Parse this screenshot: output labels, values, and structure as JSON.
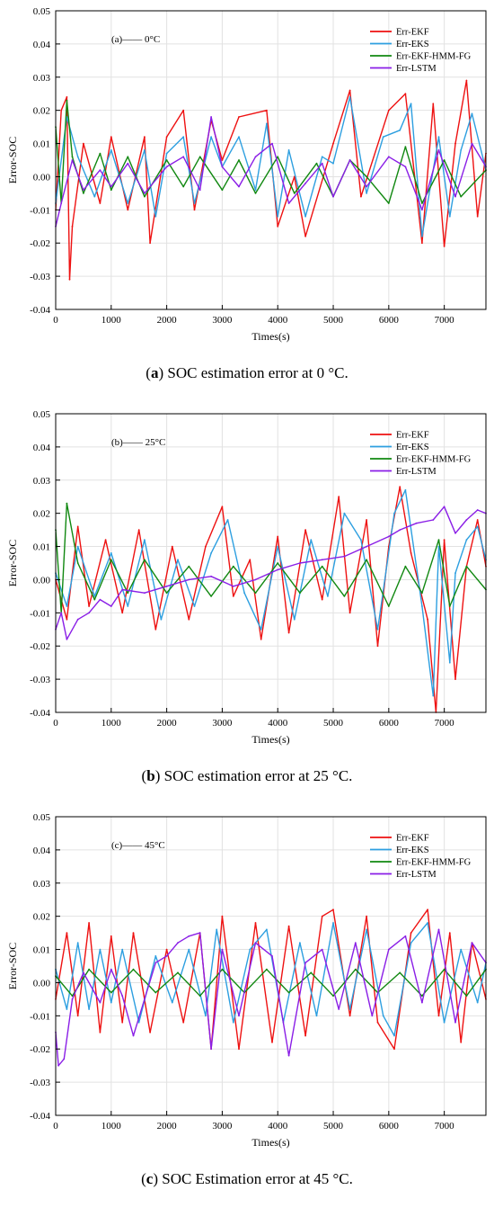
{
  "chart_data": [
    {
      "type": "line",
      "annotation": "(a)—— 0°C",
      "caption_letter": "a",
      "caption_text": "SOC estimation error at 0 °C.",
      "xlabel": "Times(s)",
      "ylabel": "Error-SOC",
      "xlim": [
        0,
        7750
      ],
      "ylim": [
        -0.04,
        0.05
      ],
      "x_ticks": [
        "0",
        "1000",
        "2000",
        "3000",
        "4000",
        "5000",
        "6000",
        "7000"
      ],
      "y_ticks": [
        "-0.04",
        "-0.03",
        "-0.02",
        "-0.01",
        "0.00",
        "0.01",
        "0.02",
        "0.03",
        "0.04",
        "0.05"
      ],
      "grid": true,
      "legend_position": "top-right",
      "colors": {
        "Err-EKF": "#ee1111",
        "Err-EKS": "#2d9fe0",
        "Err-EKF-HMM-FG": "#118811",
        "Err-LSTM": "#8a1ee6"
      },
      "series": [
        {
          "name": "Err-EKF",
          "x": [
            0,
            100,
            200,
            250,
            300,
            500,
            800,
            1000,
            1300,
            1600,
            1700,
            2000,
            2300,
            2500,
            2800,
            3000,
            3300,
            3800,
            4000,
            4300,
            4500,
            5000,
            5300,
            5500,
            6000,
            6300,
            6600,
            6800,
            7000,
            7200,
            7400,
            7600,
            7750
          ],
          "y": [
            -0.01,
            0.02,
            0.024,
            -0.031,
            -0.015,
            0.01,
            -0.008,
            0.012,
            -0.01,
            0.012,
            -0.02,
            0.012,
            0.02,
            -0.01,
            0.017,
            0.005,
            0.018,
            0.02,
            -0.015,
            0.0,
            -0.018,
            0.01,
            0.026,
            -0.006,
            0.02,
            0.025,
            -0.02,
            0.022,
            -0.021,
            0.01,
            0.029,
            -0.012,
            0.007
          ]
        },
        {
          "name": "Err-EKS",
          "x": [
            0,
            200,
            400,
            700,
            1000,
            1300,
            1600,
            1800,
            2000,
            2300,
            2500,
            2800,
            3000,
            3300,
            3600,
            3800,
            4000,
            4200,
            4500,
            4800,
            5000,
            5300,
            5600,
            5900,
            6200,
            6400,
            6600,
            6900,
            7100,
            7300,
            7500,
            7750
          ],
          "y": [
            -0.008,
            0.018,
            0.006,
            -0.006,
            0.008,
            -0.008,
            0.008,
            -0.012,
            0.007,
            0.012,
            -0.008,
            0.012,
            0.003,
            0.012,
            -0.004,
            0.016,
            -0.012,
            0.008,
            -0.012,
            0.006,
            0.004,
            0.024,
            -0.005,
            0.012,
            0.014,
            0.022,
            -0.018,
            0.012,
            -0.012,
            0.008,
            0.019,
            0.002
          ]
        },
        {
          "name": "Err-EKF-HMM-FG",
          "x": [
            0,
            100,
            200,
            300,
            500,
            800,
            1000,
            1300,
            1600,
            2000,
            2300,
            2600,
            3000,
            3300,
            3600,
            4000,
            4300,
            4700,
            5000,
            5300,
            5600,
            6000,
            6300,
            6600,
            7000,
            7300,
            7750
          ],
          "y": [
            0.015,
            -0.008,
            0.023,
            0.006,
            -0.005,
            0.007,
            -0.004,
            0.006,
            -0.006,
            0.005,
            -0.003,
            0.006,
            -0.004,
            0.005,
            -0.005,
            0.006,
            -0.005,
            0.004,
            -0.006,
            0.005,
            0.0,
            -0.008,
            0.009,
            -0.008,
            0.005,
            -0.006,
            0.002
          ]
        },
        {
          "name": "Err-LSTM",
          "x": [
            0,
            100,
            300,
            500,
            800,
            1000,
            1300,
            1600,
            2000,
            2300,
            2600,
            2800,
            3000,
            3300,
            3600,
            3900,
            4200,
            4500,
            4800,
            5000,
            5300,
            5600,
            6000,
            6300,
            6600,
            6900,
            7200,
            7500,
            7750
          ],
          "y": [
            -0.015,
            -0.008,
            0.005,
            -0.004,
            0.002,
            -0.003,
            0.004,
            -0.005,
            0.003,
            0.006,
            -0.004,
            0.018,
            0.003,
            -0.003,
            0.006,
            0.01,
            -0.008,
            -0.002,
            0.004,
            -0.006,
            0.005,
            -0.003,
            0.006,
            0.003,
            -0.01,
            0.008,
            -0.006,
            0.01,
            0.003
          ]
        }
      ]
    },
    {
      "type": "line",
      "annotation": "(b)—— 25°C",
      "caption_letter": "b",
      "caption_text": "SOC estimation error at 25 °C.",
      "xlabel": "Times(s)",
      "ylabel": "Error-SOC",
      "xlim": [
        0,
        7750
      ],
      "ylim": [
        -0.04,
        0.05
      ],
      "x_ticks": [
        "0",
        "1000",
        "2000",
        "3000",
        "4000",
        "5000",
        "6000",
        "7000"
      ],
      "y_ticks": [
        "-0.04",
        "-0.03",
        "-0.02",
        "-0.01",
        "0.00",
        "0.01",
        "0.02",
        "0.03",
        "0.04",
        "0.05"
      ],
      "grid": true,
      "legend_position": "top-right",
      "colors": {
        "Err-EKF": "#ee1111",
        "Err-EKS": "#2d9fe0",
        "Err-EKF-HMM-FG": "#118811",
        "Err-LSTM": "#8a1ee6"
      },
      "series": [
        {
          "name": "Err-EKF",
          "x": [
            0,
            200,
            400,
            600,
            900,
            1200,
            1500,
            1800,
            2100,
            2400,
            2700,
            3000,
            3200,
            3500,
            3700,
            4000,
            4200,
            4500,
            4800,
            5100,
            5300,
            5600,
            5800,
            6000,
            6200,
            6400,
            6700,
            6850,
            7000,
            7200,
            7400,
            7600,
            7750
          ],
          "y": [
            0.0,
            -0.012,
            0.016,
            -0.008,
            0.012,
            -0.01,
            0.015,
            -0.015,
            0.01,
            -0.012,
            0.01,
            0.022,
            -0.005,
            0.006,
            -0.018,
            0.013,
            -0.016,
            0.015,
            -0.006,
            0.025,
            -0.01,
            0.018,
            -0.02,
            0.01,
            0.028,
            0.008,
            -0.012,
            -0.04,
            0.012,
            -0.03,
            0.004,
            0.018,
            0.004
          ]
        },
        {
          "name": "Err-EKS",
          "x": [
            0,
            200,
            400,
            700,
            1000,
            1300,
            1600,
            1900,
            2200,
            2500,
            2800,
            3100,
            3400,
            3700,
            4000,
            4300,
            4600,
            4900,
            5200,
            5500,
            5800,
            6100,
            6300,
            6600,
            6800,
            6900,
            7100,
            7200,
            7400,
            7600,
            7750
          ],
          "y": [
            0.002,
            -0.008,
            0.01,
            -0.005,
            0.008,
            -0.008,
            0.012,
            -0.012,
            0.006,
            -0.008,
            0.008,
            0.018,
            -0.004,
            -0.015,
            0.01,
            -0.012,
            0.012,
            -0.005,
            0.02,
            0.012,
            -0.015,
            0.02,
            0.027,
            -0.008,
            -0.035,
            0.01,
            -0.025,
            0.002,
            0.012,
            0.016,
            0.006
          ]
        },
        {
          "name": "Err-EKF-HMM-FG",
          "x": [
            0,
            100,
            200,
            400,
            700,
            1000,
            1300,
            1600,
            2000,
            2400,
            2800,
            3200,
            3600,
            4000,
            4400,
            4800,
            5200,
            5600,
            6000,
            6300,
            6600,
            6900,
            7100,
            7400,
            7750
          ],
          "y": [
            0.015,
            -0.01,
            0.023,
            0.005,
            -0.006,
            0.006,
            -0.004,
            0.006,
            -0.004,
            0.004,
            -0.005,
            0.004,
            -0.004,
            0.005,
            -0.004,
            0.004,
            -0.005,
            0.006,
            -0.008,
            0.004,
            -0.004,
            0.012,
            -0.008,
            0.004,
            -0.003
          ]
        },
        {
          "name": "Err-LSTM",
          "x": [
            0,
            100,
            200,
            400,
            600,
            800,
            1000,
            1200,
            1600,
            2000,
            2400,
            2800,
            3200,
            3600,
            4000,
            4400,
            4800,
            5200,
            5600,
            6000,
            6200,
            6500,
            6800,
            7000,
            7200,
            7400,
            7600,
            7750
          ],
          "y": [
            -0.015,
            -0.01,
            -0.018,
            -0.012,
            -0.01,
            -0.006,
            -0.008,
            -0.003,
            -0.004,
            -0.002,
            0.0,
            0.001,
            -0.002,
            0.0,
            0.003,
            0.005,
            0.006,
            0.007,
            0.01,
            0.013,
            0.015,
            0.017,
            0.018,
            0.022,
            0.014,
            0.018,
            0.021,
            0.02
          ]
        }
      ]
    },
    {
      "type": "line",
      "annotation": "(c)—— 45°C",
      "caption_letter": "c",
      "caption_text": "SOC Estimation error at 45 °C.",
      "xlabel": "Times(s)",
      "ylabel": "Error-SOC",
      "xlim": [
        0,
        7750
      ],
      "ylim": [
        -0.04,
        0.05
      ],
      "x_ticks": [
        "0",
        "1000",
        "2000",
        "3000",
        "4000",
        "5000",
        "6000",
        "7000"
      ],
      "y_ticks": [
        "-0.04",
        "-0.03",
        "-0.02",
        "-0.01",
        "0.00",
        "0.01",
        "0.02",
        "0.03",
        "0.04",
        "0.05"
      ],
      "grid": true,
      "legend_position": "top-right",
      "colors": {
        "Err-EKF": "#ee1111",
        "Err-EKS": "#2d9fe0",
        "Err-EKF-HMM-FG": "#118811",
        "Err-LSTM": "#8a1ee6"
      },
      "series": [
        {
          "name": "Err-EKF",
          "x": [
            0,
            200,
            400,
            600,
            800,
            1000,
            1200,
            1400,
            1700,
            2000,
            2300,
            2600,
            2800,
            3000,
            3300,
            3600,
            3900,
            4200,
            4500,
            4800,
            5000,
            5300,
            5600,
            5800,
            6100,
            6400,
            6700,
            6900,
            7100,
            7300,
            7500,
            7750
          ],
          "y": [
            -0.005,
            0.015,
            -0.01,
            0.018,
            -0.015,
            0.014,
            -0.012,
            0.015,
            -0.015,
            0.01,
            -0.012,
            0.015,
            -0.02,
            0.02,
            -0.02,
            0.018,
            -0.018,
            0.017,
            -0.016,
            0.02,
            0.022,
            -0.01,
            0.02,
            -0.012,
            -0.02,
            0.015,
            0.022,
            -0.01,
            0.015,
            -0.018,
            0.012,
            -0.005
          ]
        },
        {
          "name": "Err-EKS",
          "x": [
            0,
            200,
            400,
            600,
            800,
            1000,
            1200,
            1500,
            1800,
            2100,
            2400,
            2700,
            2900,
            3200,
            3500,
            3800,
            4100,
            4400,
            4700,
            5000,
            5300,
            5600,
            5900,
            6100,
            6400,
            6700,
            7000,
            7300,
            7600,
            7750
          ],
          "y": [
            0.004,
            -0.008,
            0.012,
            -0.008,
            0.01,
            -0.006,
            0.01,
            -0.012,
            0.008,
            -0.006,
            0.01,
            -0.01,
            0.016,
            -0.012,
            0.01,
            0.016,
            -0.012,
            0.012,
            -0.01,
            0.018,
            -0.008,
            0.016,
            -0.01,
            -0.016,
            0.012,
            0.018,
            -0.012,
            0.01,
            -0.006,
            0.006
          ]
        },
        {
          "name": "Err-EKF-HMM-FG",
          "x": [
            0,
            300,
            600,
            1000,
            1400,
            1800,
            2200,
            2600,
            3000,
            3400,
            3800,
            4200,
            4600,
            5000,
            5400,
            5800,
            6200,
            6600,
            7000,
            7400,
            7750
          ],
          "y": [
            0.002,
            -0.004,
            0.004,
            -0.003,
            0.004,
            -0.003,
            0.003,
            -0.004,
            0.004,
            -0.003,
            0.004,
            -0.003,
            0.003,
            -0.004,
            0.004,
            -0.003,
            0.003,
            -0.004,
            0.004,
            -0.004,
            0.004
          ]
        },
        {
          "name": "Err-LSTM",
          "x": [
            0,
            50,
            150,
            300,
            500,
            800,
            1000,
            1200,
            1400,
            1600,
            1800,
            2000,
            2200,
            2400,
            2600,
            2800,
            3000,
            3300,
            3600,
            3900,
            4200,
            4500,
            4800,
            5100,
            5400,
            5700,
            6000,
            6300,
            6600,
            6900,
            7200,
            7500,
            7750
          ],
          "y": [
            -0.015,
            -0.025,
            -0.023,
            -0.005,
            0.003,
            -0.006,
            0.004,
            -0.004,
            -0.016,
            -0.005,
            0.006,
            0.008,
            0.012,
            0.014,
            0.015,
            -0.02,
            0.01,
            -0.01,
            0.012,
            0.008,
            -0.022,
            0.006,
            0.01,
            -0.008,
            0.012,
            -0.01,
            0.01,
            0.014,
            -0.006,
            0.016,
            -0.012,
            0.012,
            0.006
          ]
        }
      ]
    }
  ]
}
